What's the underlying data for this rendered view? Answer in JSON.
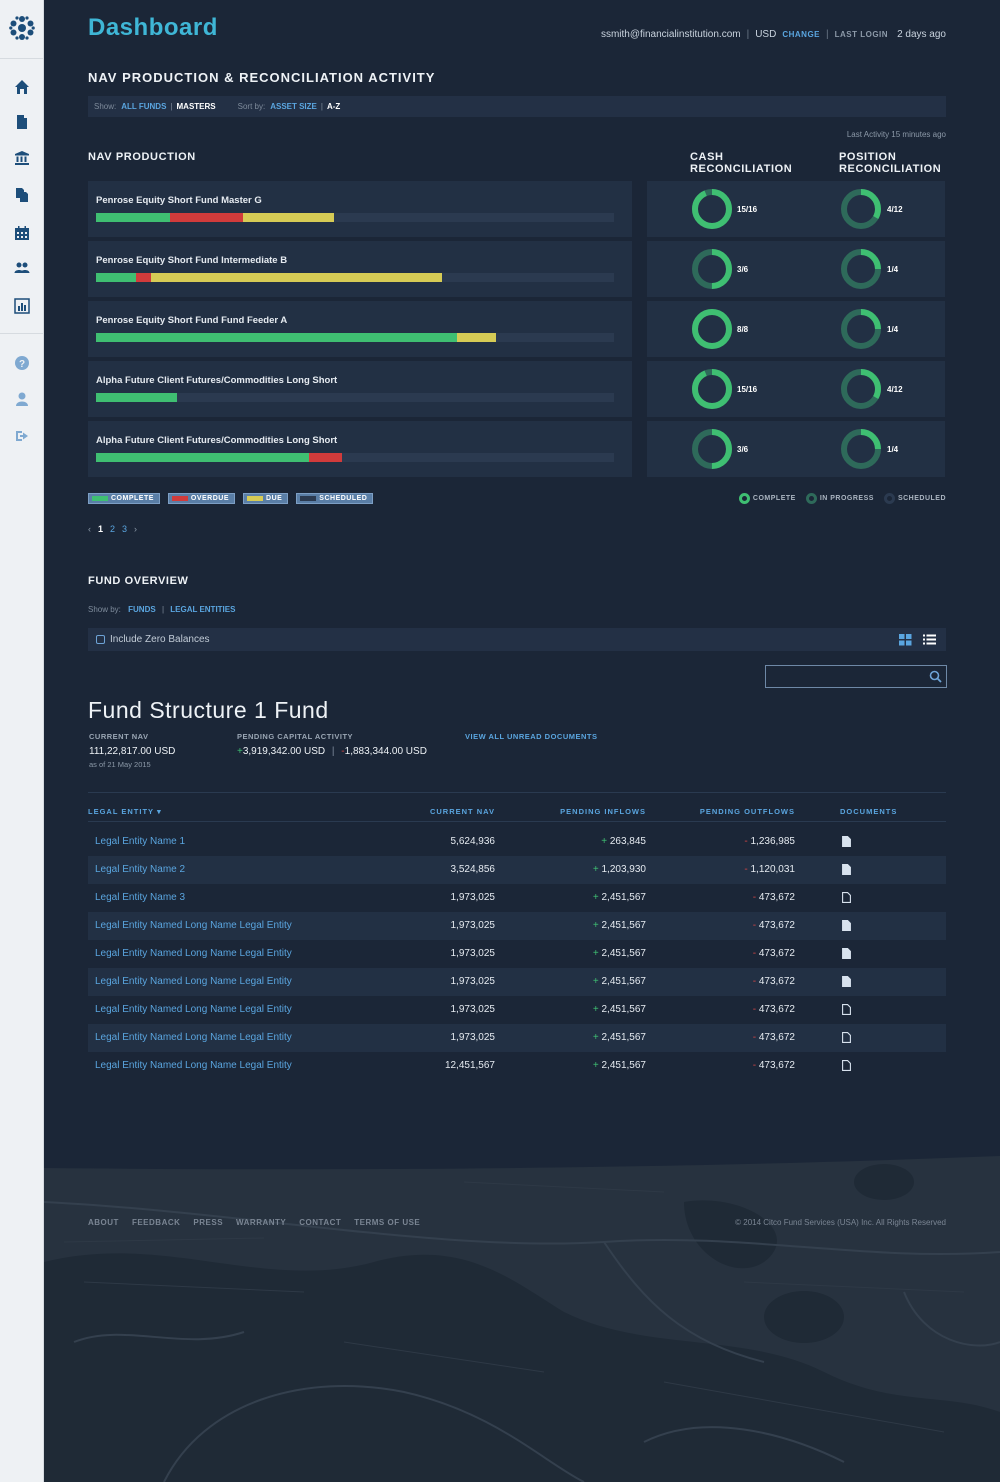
{
  "header": {
    "title": "Dashboard",
    "email": "ssmith@financialinstitution.com",
    "currency": "USD",
    "change_label": "CHANGE",
    "last_login_label": "LAST LOGIN",
    "last_login_value": "2 days ago"
  },
  "nav_section": {
    "title": "NAV PRODUCTION & RECONCILIATION ACTIVITY",
    "show_label": "Show:",
    "show_all": "ALL FUNDS",
    "show_masters": "MASTERS",
    "sort_label": "Sort by:",
    "sort_asset": "ASSET SIZE",
    "sort_az": "A-Z",
    "last_activity": "Last Activity 15 minutes ago",
    "nav_production_title": "NAV PRODUCTION",
    "cash_title_1": "CASH",
    "cash_title_2": "RECONCILIATION",
    "position_title_1": "POSITION",
    "position_title_2": "RECONCILIATION"
  },
  "nav_rows": [
    {
      "name": "Penrose Equity Short Fund Master G",
      "complete": 0.143,
      "overdue": 0.141,
      "due": 0.176,
      "cash_label": "15/16",
      "cash_fraction": 0.9375,
      "position_label": "4/12",
      "position_fraction": 0.333
    },
    {
      "name": "Penrose Equity Short Fund Intermediate B",
      "complete": 0.077,
      "overdue": 0.03,
      "due": 0.56,
      "cash_label": "3/6",
      "cash_fraction": 0.5,
      "position_label": "1/4",
      "position_fraction": 0.25
    },
    {
      "name": "Penrose Equity Short Fund Fund Feeder A",
      "complete": 0.697,
      "overdue": 0,
      "due": 0.075,
      "cash_label": "8/8",
      "cash_fraction": 1.0,
      "position_label": "1/4",
      "position_fraction": 0.25
    },
    {
      "name": "Alpha Future Client Futures/Commodities Long Short",
      "complete": 0.156,
      "overdue": 0,
      "due": 0,
      "cash_label": "15/16",
      "cash_fraction": 0.9375,
      "position_label": "4/12",
      "position_fraction": 0.333
    },
    {
      "name": "Alpha Future Client Futures/Commodities Long Short",
      "complete": 0.412,
      "overdue": 0.062,
      "due": 0,
      "cash_label": "3/6",
      "cash_fraction": 0.5,
      "position_label": "1/4",
      "position_fraction": 0.25
    }
  ],
  "legend": {
    "complete": "COMPLETE",
    "overdue": "OVERDUE",
    "due": "DUE",
    "scheduled": "SCHEDULED",
    "in_progress": "IN PROGRESS"
  },
  "pager": {
    "prev": "‹",
    "pages": [
      "1",
      "2",
      "3"
    ],
    "next": "›"
  },
  "fund_overview": {
    "title": "FUND OVERVIEW",
    "show_label": "Show by:",
    "funds": "FUNDS",
    "legal_entities": "LEGAL ENTITIES",
    "include_zero": "Include Zero Balances",
    "fund_name": "Fund Structure 1 Fund",
    "current_nav_label": "CURRENT NAV",
    "current_nav_value": "111,22,817.00 USD",
    "as_of": "as of 21 May 2015",
    "pending_label": "PENDING CAPITAL ACTIVITY",
    "pending_in": "3,919,342.00 USD",
    "pending_out": "1,883,344.00 USD",
    "view_docs": "VIEW ALL UNREAD DOCUMENTS"
  },
  "table": {
    "columns": [
      "LEGAL ENTITY ▾",
      "CURRENT NAV",
      "PENDING INFLOWS",
      "PENDING OUTFLOWS",
      "DOCUMENTS"
    ],
    "rows": [
      {
        "entity": "Legal Entity Name 1",
        "nav": "5,624,936",
        "inflow": "263,845",
        "outflow": "1,236,985",
        "doc": "filled"
      },
      {
        "entity": "Legal Entity Name 2",
        "nav": "3,524,856",
        "inflow": "1,203,930",
        "outflow": "1,120,031",
        "doc": "filled"
      },
      {
        "entity": "Legal Entity Name 3",
        "nav": "1,973,025",
        "inflow": "2,451,567",
        "outflow": "473,672",
        "doc": "outline"
      },
      {
        "entity": "Legal Entity Named Long Name Legal Entity",
        "nav": "1,973,025",
        "inflow": "2,451,567",
        "outflow": "473,672",
        "doc": "filled"
      },
      {
        "entity": "Legal Entity Named Long Name Legal Entity",
        "nav": "1,973,025",
        "inflow": "2,451,567",
        "outflow": "473,672",
        "doc": "filled"
      },
      {
        "entity": "Legal Entity Named Long Name Legal Entity",
        "nav": "1,973,025",
        "inflow": "2,451,567",
        "outflow": "473,672",
        "doc": "filled"
      },
      {
        "entity": "Legal Entity Named Long Name Legal Entity",
        "nav": "1,973,025",
        "inflow": "2,451,567",
        "outflow": "473,672",
        "doc": "outline"
      },
      {
        "entity": "Legal Entity Named Long Name Legal Entity",
        "nav": "1,973,025",
        "inflow": "2,451,567",
        "outflow": "473,672",
        "doc": "outline"
      },
      {
        "entity": "Legal Entity Named Long Name Legal Entity",
        "nav": "12,451,567",
        "inflow": "2,451,567",
        "outflow": "473,672",
        "doc": "outline"
      }
    ]
  },
  "footer": {
    "links": [
      "ABOUT",
      "FEEDBACK",
      "PRESS",
      "WARRANTY",
      "CONTACT",
      "TERMS OF USE"
    ],
    "copyright": "© 2014 Citco Fund Services (USA) Inc. All Rights Reserved"
  },
  "colors": {
    "complete": "#3fbf72",
    "overdue": "#d13b3b",
    "due": "#d6cb55",
    "scheduled": "#2b3a50",
    "accent": "#3fb6d6",
    "link": "#5aa5df"
  },
  "sidebar_icons": [
    "home-icon",
    "document-icon",
    "bank-icon",
    "copy-icon",
    "calendar-icon",
    "users-icon",
    "bar-chart-icon",
    "help-icon",
    "user-icon",
    "logout-icon"
  ]
}
